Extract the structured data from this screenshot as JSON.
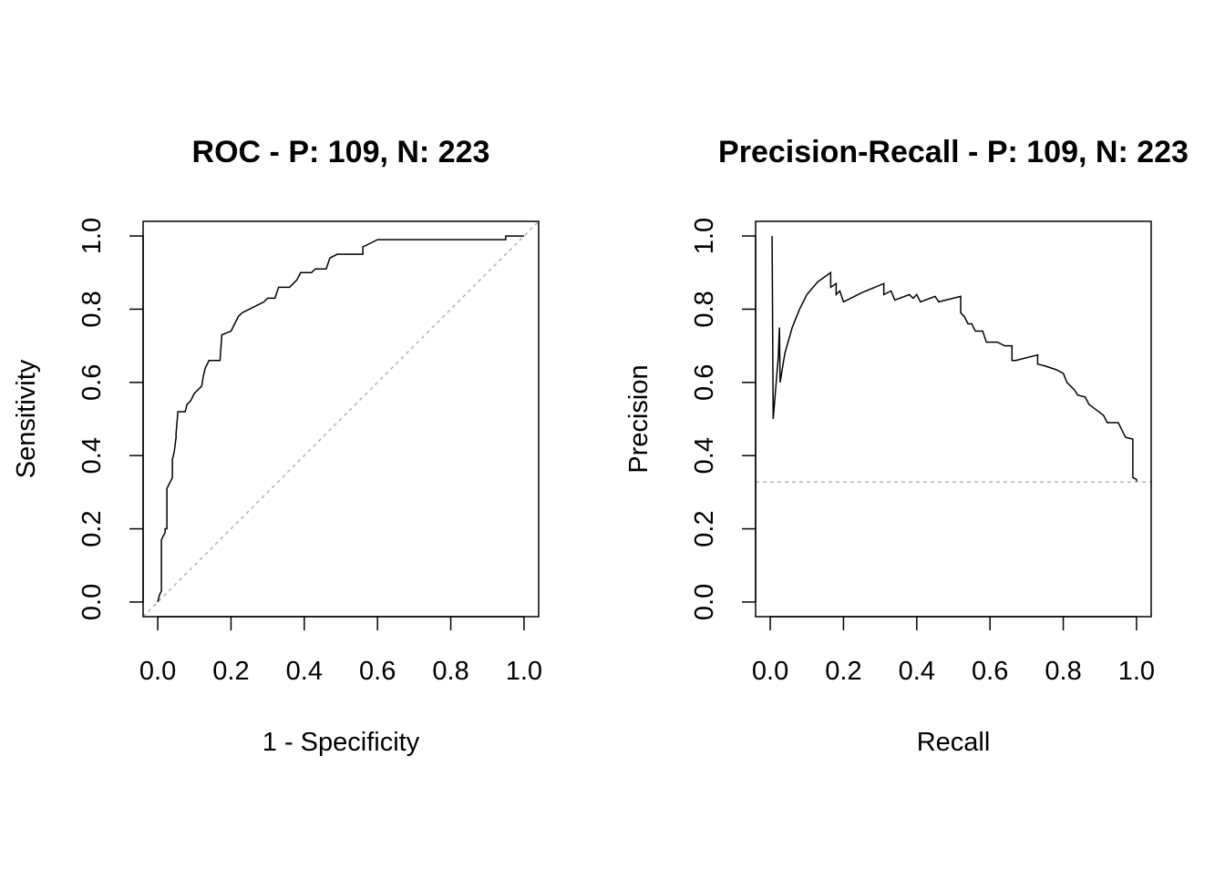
{
  "chart_data": [
    {
      "type": "line",
      "title": "ROC - P: 109, N: 223",
      "x_label": "1 - Specificity",
      "y_label": "Sensitivity",
      "xlim": [
        -0.04,
        1.04
      ],
      "ylim": [
        -0.04,
        1.04
      ],
      "xticks": [
        {
          "value": 0,
          "label": "0.0"
        },
        {
          "value": 0.2,
          "label": "0.2"
        },
        {
          "value": 0.4,
          "label": "0.4"
        },
        {
          "value": 0.6,
          "label": "0.6"
        },
        {
          "value": 0.8,
          "label": "0.8"
        },
        {
          "value": 1,
          "label": "1.0"
        }
      ],
      "yticks": [
        {
          "value": 0,
          "label": "0.0"
        },
        {
          "value": 0.2,
          "label": "0.2"
        },
        {
          "value": 0.4,
          "label": "0.4"
        },
        {
          "value": 0.6,
          "label": "0.6"
        },
        {
          "value": 0.8,
          "label": "0.8"
        },
        {
          "value": 1,
          "label": "1.0"
        }
      ],
      "color": "#000000",
      "reference_line": {
        "intercept": 0,
        "slope": 1,
        "color": "#b3b3b3",
        "dashed": true
      },
      "x": [
        0,
        0.005,
        0.01,
        0.01,
        0.01,
        0.02,
        0.02,
        0.025,
        0.025,
        0.03,
        0.035,
        0.04,
        0.04,
        0.045,
        0.05,
        0.05,
        0.055,
        0.075,
        0.08,
        0.09,
        0.1,
        0.11,
        0.12,
        0.125,
        0.13,
        0.14,
        0.17,
        0.175,
        0.2,
        0.21,
        0.22,
        0.23,
        0.25,
        0.27,
        0.29,
        0.3,
        0.32,
        0.33,
        0.36,
        0.38,
        0.39,
        0.42,
        0.43,
        0.46,
        0.47,
        0.49,
        0.56,
        0.56,
        0.58,
        0.6,
        0.95,
        0.95,
        1.0
      ],
      "values": [
        0,
        0.02,
        0.03,
        0.07,
        0.17,
        0.19,
        0.2,
        0.2,
        0.31,
        0.32,
        0.33,
        0.34,
        0.39,
        0.41,
        0.45,
        0.46,
        0.52,
        0.52,
        0.54,
        0.55,
        0.57,
        0.58,
        0.59,
        0.62,
        0.64,
        0.66,
        0.66,
        0.73,
        0.74,
        0.76,
        0.78,
        0.79,
        0.8,
        0.81,
        0.82,
        0.83,
        0.83,
        0.86,
        0.86,
        0.88,
        0.9,
        0.9,
        0.91,
        0.91,
        0.94,
        0.95,
        0.95,
        0.97,
        0.98,
        0.99,
        0.99,
        1.0,
        1.0
      ]
    },
    {
      "type": "line",
      "title": "Precision-Recall - P: 109, N: 223",
      "x_label": "Recall",
      "y_label": "Precision",
      "xlim": [
        -0.04,
        1.04
      ],
      "ylim": [
        -0.04,
        1.04
      ],
      "xticks": [
        {
          "value": 0,
          "label": "0.0"
        },
        {
          "value": 0.2,
          "label": "0.2"
        },
        {
          "value": 0.4,
          "label": "0.4"
        },
        {
          "value": 0.6,
          "label": "0.6"
        },
        {
          "value": 0.8,
          "label": "0.8"
        },
        {
          "value": 1,
          "label": "1.0"
        }
      ],
      "yticks": [
        {
          "value": 0,
          "label": "0.0"
        },
        {
          "value": 0.2,
          "label": "0.2"
        },
        {
          "value": 0.4,
          "label": "0.4"
        },
        {
          "value": 0.6,
          "label": "0.6"
        },
        {
          "value": 0.8,
          "label": "0.8"
        },
        {
          "value": 1,
          "label": "1.0"
        }
      ],
      "color": "#000000",
      "reference_line": {
        "intercept": 0.328,
        "slope": 0,
        "color": "#b3b3b3",
        "dashed": true
      },
      "x": [
        0.005,
        0.008,
        0.022,
        0.025,
        0.027,
        0.04,
        0.06,
        0.08,
        0.1,
        0.13,
        0.165,
        0.165,
        0.18,
        0.18,
        0.19,
        0.2,
        0.25,
        0.31,
        0.31,
        0.33,
        0.34,
        0.38,
        0.39,
        0.4,
        0.41,
        0.45,
        0.46,
        0.52,
        0.52,
        0.53,
        0.54,
        0.55,
        0.56,
        0.58,
        0.59,
        0.62,
        0.64,
        0.66,
        0.66,
        0.67,
        0.73,
        0.73,
        0.75,
        0.78,
        0.8,
        0.81,
        0.83,
        0.84,
        0.86,
        0.87,
        0.89,
        0.91,
        0.92,
        0.95,
        0.96,
        0.97,
        0.99,
        0.99,
        1.0,
        1.0
      ],
      "values": [
        1.0,
        0.5,
        0.67,
        0.75,
        0.6,
        0.68,
        0.75,
        0.8,
        0.84,
        0.875,
        0.9,
        0.86,
        0.87,
        0.84,
        0.85,
        0.82,
        0.845,
        0.87,
        0.84,
        0.85,
        0.825,
        0.84,
        0.83,
        0.84,
        0.82,
        0.835,
        0.82,
        0.835,
        0.79,
        0.78,
        0.76,
        0.76,
        0.74,
        0.74,
        0.71,
        0.71,
        0.7,
        0.7,
        0.66,
        0.66,
        0.675,
        0.65,
        0.645,
        0.635,
        0.625,
        0.6,
        0.58,
        0.565,
        0.56,
        0.54,
        0.525,
        0.51,
        0.49,
        0.49,
        0.47,
        0.45,
        0.445,
        0.34,
        0.335,
        0.33
      ]
    }
  ]
}
